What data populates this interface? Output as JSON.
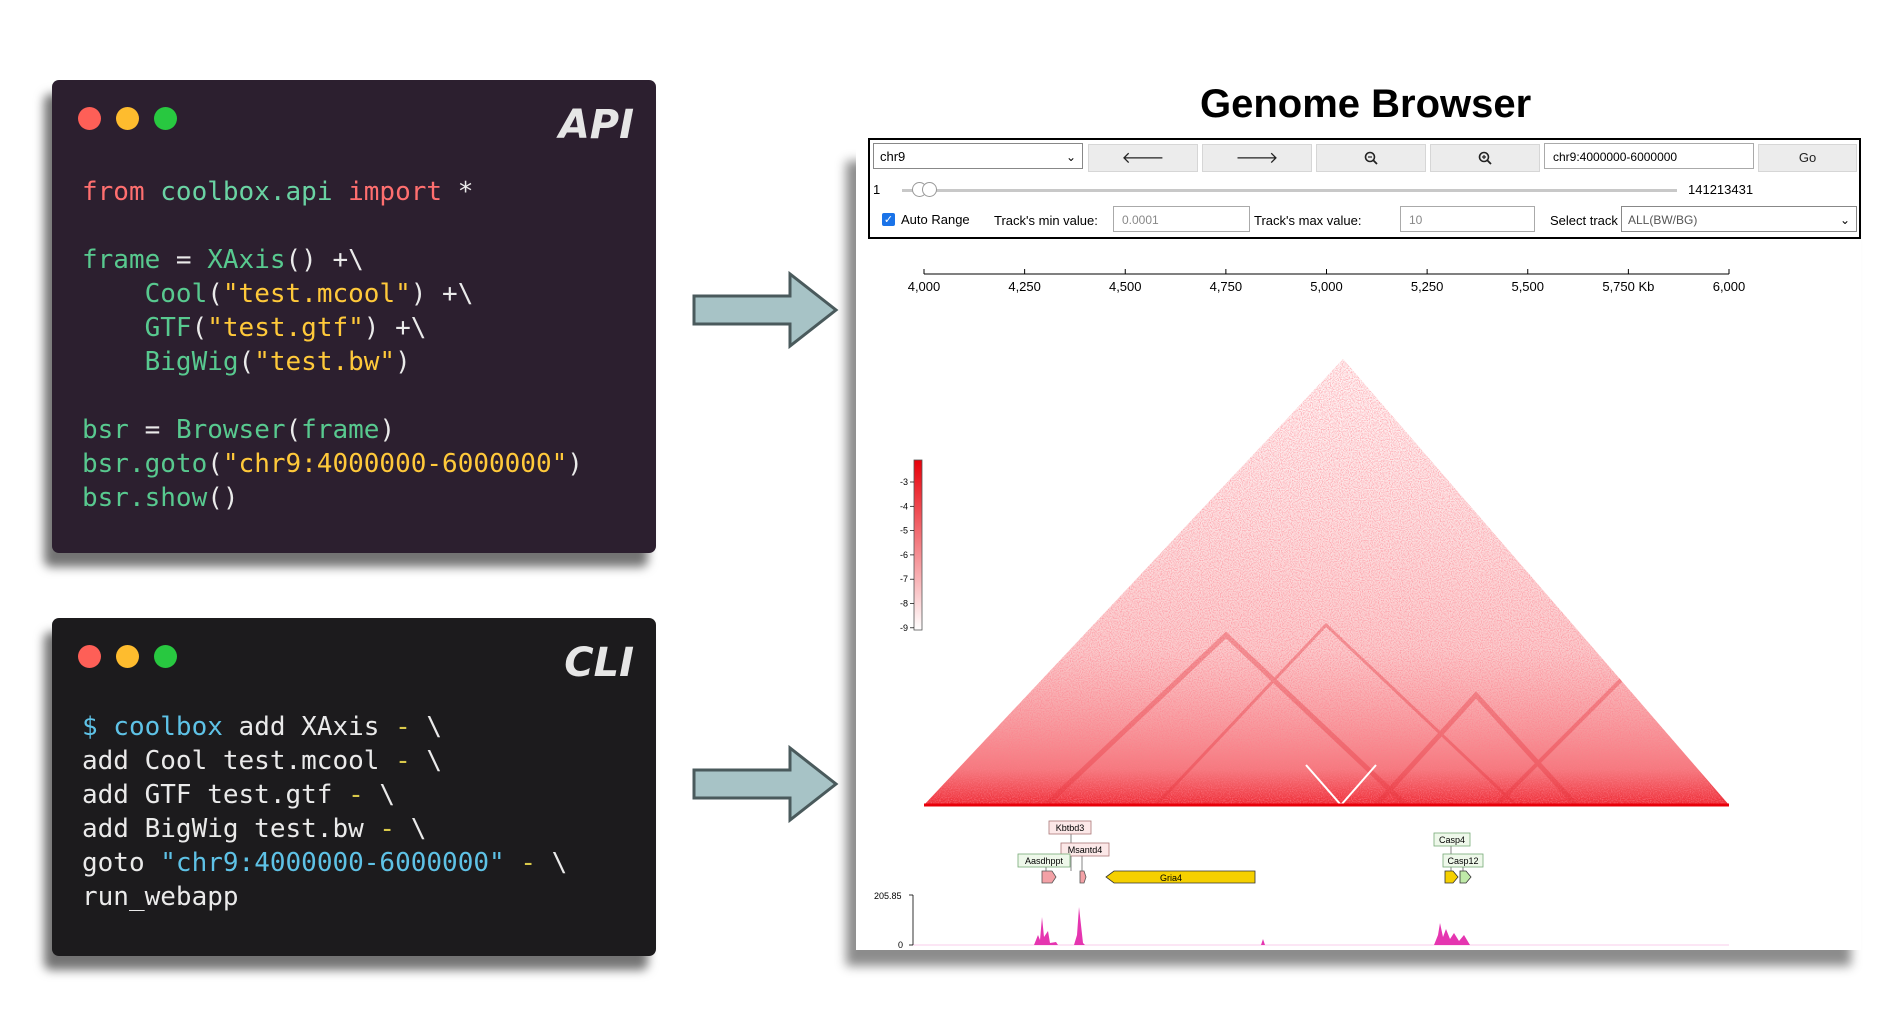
{
  "api_window": {
    "label": "API",
    "lines": [
      [
        [
          "kw",
          "from "
        ],
        [
          "mod",
          "coolbox.api "
        ],
        [
          "kw",
          "import "
        ],
        [
          "op",
          "*"
        ]
      ],
      [],
      [
        [
          "fn",
          "frame "
        ],
        [
          "op",
          "= "
        ],
        [
          "fn",
          "XAxis"
        ],
        [
          "op",
          "() +\\"
        ]
      ],
      [
        [
          "op",
          "    "
        ],
        [
          "fn",
          "Cool"
        ],
        [
          "op",
          "("
        ],
        [
          "str",
          "\"test.mcool\""
        ],
        [
          "op",
          ") +\\"
        ]
      ],
      [
        [
          "op",
          "    "
        ],
        [
          "fn",
          "GTF"
        ],
        [
          "op",
          "("
        ],
        [
          "str",
          "\"test.gtf\""
        ],
        [
          "op",
          ") +\\"
        ]
      ],
      [
        [
          "op",
          "    "
        ],
        [
          "fn",
          "BigWig"
        ],
        [
          "op",
          "("
        ],
        [
          "str",
          "\"test.bw\""
        ],
        [
          "op",
          ")"
        ]
      ],
      [],
      [
        [
          "fn",
          "bsr "
        ],
        [
          "op",
          "= "
        ],
        [
          "fn",
          "Browser"
        ],
        [
          "op",
          "("
        ],
        [
          "fn",
          "frame"
        ],
        [
          "op",
          ")"
        ]
      ],
      [
        [
          "fn",
          "bsr.goto"
        ],
        [
          "op",
          "("
        ],
        [
          "str",
          "\"chr9:4000000-6000000\""
        ],
        [
          "op",
          ")"
        ]
      ],
      [
        [
          "fn",
          "bsr.show"
        ],
        [
          "op",
          "()"
        ]
      ]
    ]
  },
  "cli_window": {
    "label": "CLI",
    "lines": [
      [
        [
          "cmd",
          "$ coolbox "
        ],
        [
          "arg",
          "add XAxis "
        ],
        [
          "dash",
          "- "
        ],
        [
          "arg",
          "\\"
        ]
      ],
      [
        [
          "arg",
          "add Cool test.mcool "
        ],
        [
          "dash",
          "- "
        ],
        [
          "arg",
          "\\"
        ]
      ],
      [
        [
          "arg",
          "add GTF test.gtf "
        ],
        [
          "dash",
          "- "
        ],
        [
          "arg",
          "\\"
        ]
      ],
      [
        [
          "arg",
          "add BigWig test.bw "
        ],
        [
          "dash",
          "- "
        ],
        [
          "arg",
          "\\"
        ]
      ],
      [
        [
          "arg",
          "goto "
        ],
        [
          "cmd",
          "\"chr9:4000000-6000000\" "
        ],
        [
          "dash",
          "- "
        ],
        [
          "arg",
          "\\"
        ]
      ],
      [
        [
          "arg",
          "run_webapp"
        ]
      ]
    ]
  },
  "browser": {
    "title": "Genome Browser",
    "chrom_select": "chr9",
    "region_input": "chr9:4000000-6000000",
    "go_label": "Go",
    "nav_icons": [
      "arrow-left-icon",
      "arrow-right-icon",
      "zoom-out-icon",
      "zoom-in-icon"
    ],
    "slider_min": "1",
    "slider_max": "141213431",
    "auto_range_label": "Auto Range",
    "auto_range_checked": true,
    "min_label": "Track's min value:",
    "min_value": "0.0001",
    "max_label": "Track's max value:",
    "max_value": "10",
    "select_track_label": "Select track",
    "select_track_value": "ALL(BW/BG)",
    "axis_ticks": [
      "4,000",
      "4,250",
      "4,500",
      "4,750",
      "5,000",
      "5,250",
      "5,500",
      "5,750 Kb",
      "6,000"
    ],
    "colorbar_ticks": [
      "-3",
      "-4",
      "-5",
      "-6",
      "-7",
      "-8",
      "-9"
    ],
    "genes": [
      "Kbtbd3",
      "Msantd4",
      "Aasdhppt",
      "Gria4",
      "Casp4",
      "Casp12"
    ],
    "bigwig_max": "205.85",
    "bigwig_min": "0"
  }
}
